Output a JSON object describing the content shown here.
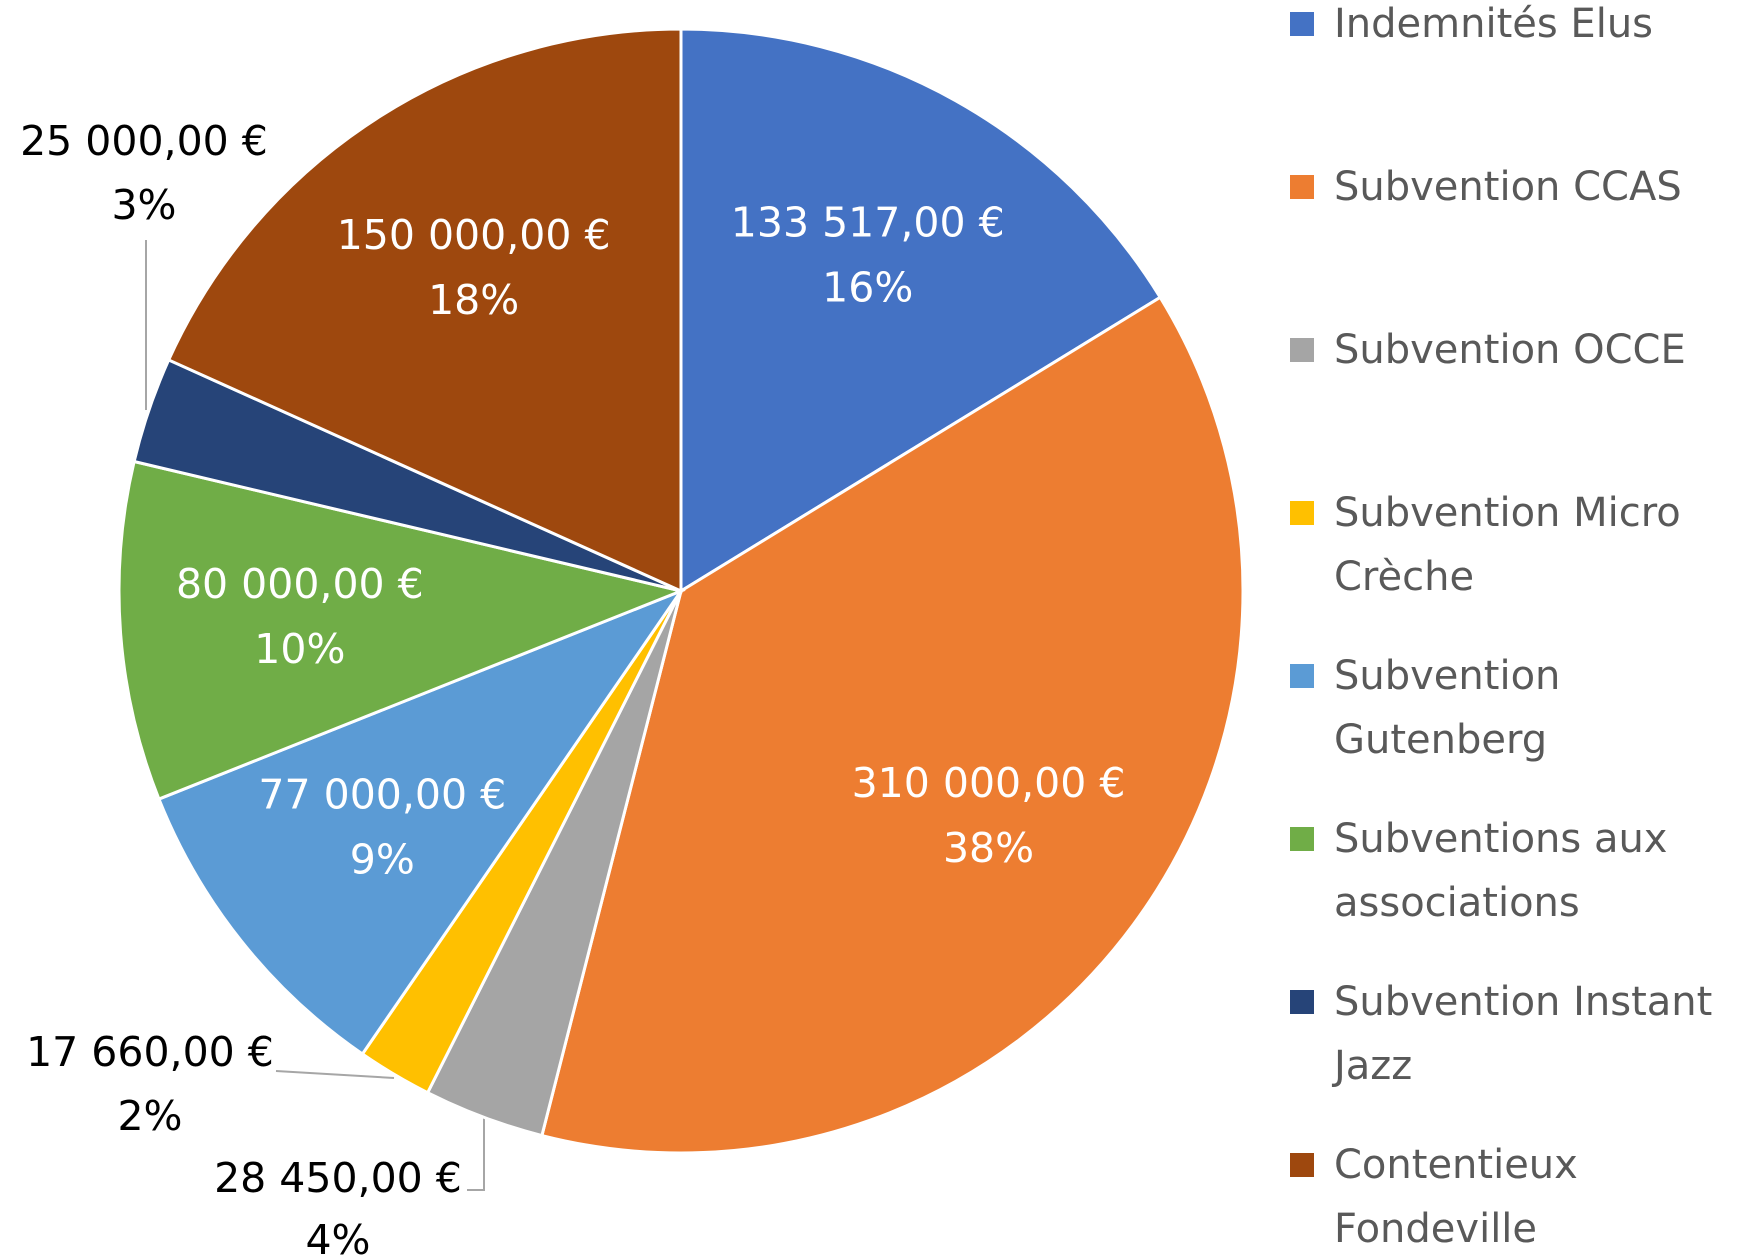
{
  "chart_data": {
    "type": "pie",
    "categories": [
      "Indemnités Elus",
      "Subvention CCAS",
      "Subvention OCCE",
      "Subvention Micro Crèche",
      "Subvention Gutenberg",
      "Subventions aux associations",
      "Subvention Instant Jazz",
      "Contentieux Fondeville"
    ],
    "values": [
      133517,
      310000,
      28450,
      17660,
      77000,
      80000,
      25000,
      150000
    ],
    "value_labels": [
      "133 517,00 €",
      "310 000,00 €",
      "28 450,00 €",
      "17 660,00 €",
      "77 000,00 €",
      "80 000,00 €",
      "25 000,00 €",
      "150 000,00 €"
    ],
    "percent_labels": [
      "16%",
      "38%",
      "4%",
      "2%",
      "9%",
      "10%",
      "3%",
      "18%"
    ],
    "colors": [
      "#4472c4",
      "#ed7d31",
      "#a5a5a5",
      "#ffc000",
      "#5b9bd5",
      "#70ad47",
      "#264478",
      "#9e480e"
    ],
    "legend": "right"
  }
}
